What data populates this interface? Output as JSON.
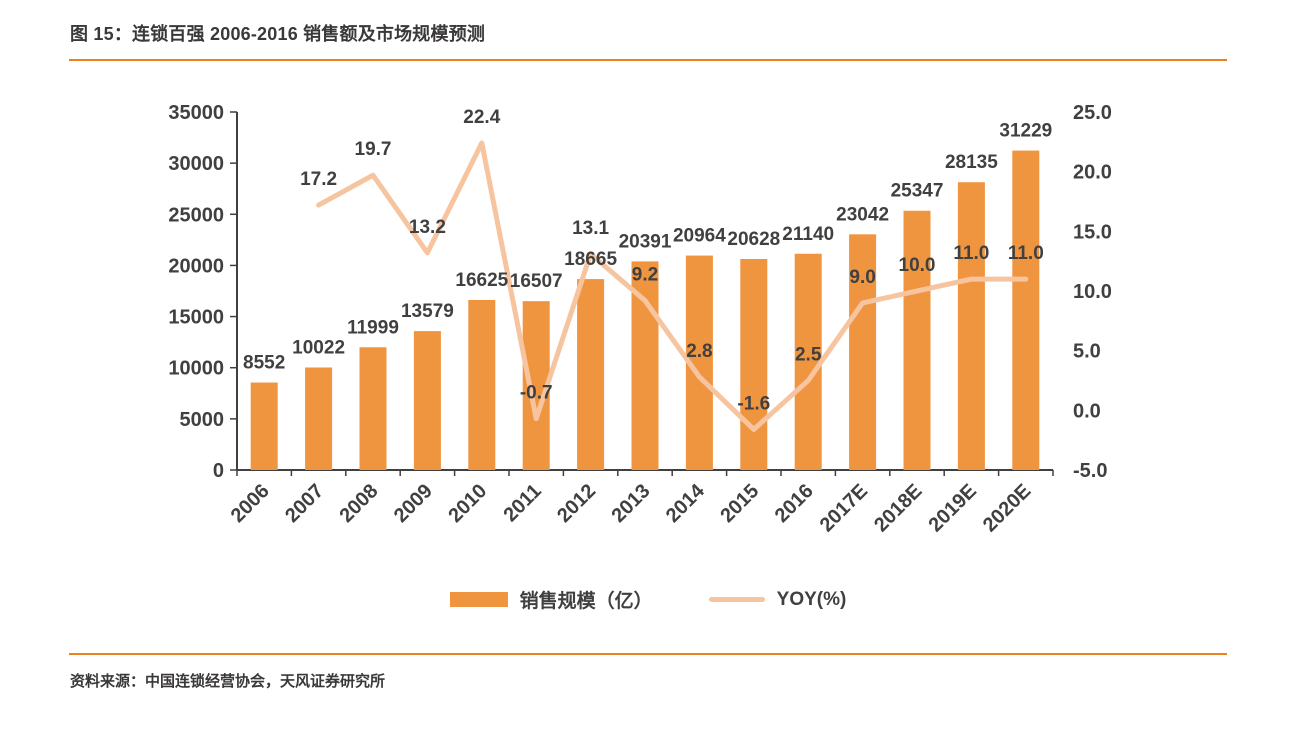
{
  "figure": {
    "title": "图 15：连锁百强 2006-2016 销售额及市场规模预测",
    "source": "资料来源：中国连锁经营协会，天风证券研究所"
  },
  "legend": {
    "bar_label": "销售规模（亿）",
    "line_label": "YOY(%)"
  },
  "colors": {
    "bar": "#F0953F",
    "line": "#F7C4A0",
    "rule": "#E8831D",
    "axis_line": "#404040",
    "label_text": "#404040",
    "title_text": "#3B3838"
  },
  "chart_data": {
    "type": "bar+line",
    "title": "图 15：连锁百强 2006-2016 销售额及市场规模预测",
    "categories": [
      "2006",
      "2007",
      "2008",
      "2009",
      "2010",
      "2011",
      "2012",
      "2013",
      "2014",
      "2015",
      "2016",
      "2017E",
      "2018E",
      "2019E",
      "2020E"
    ],
    "series": [
      {
        "name": "销售规模（亿）",
        "type": "bar",
        "y_axis": "left",
        "values": [
          8552,
          10022,
          11999,
          13579,
          16625,
          16507,
          18665,
          20391,
          20964,
          20628,
          21140,
          23042,
          25347,
          28135,
          31229
        ]
      },
      {
        "name": "YOY(%)",
        "type": "line",
        "y_axis": "right",
        "values": [
          null,
          17.2,
          19.7,
          13.2,
          22.4,
          -0.7,
          13.1,
          9.2,
          2.8,
          -1.6,
          2.5,
          9.0,
          10.0,
          11.0,
          11.0
        ]
      }
    ],
    "left_axis": {
      "min": 0,
      "max": 35000,
      "step": 5000
    },
    "right_axis": {
      "min": -5.0,
      "max": 25.0,
      "step": 5.0
    },
    "grid": false,
    "legend_position": "bottom",
    "data_labels": true
  }
}
